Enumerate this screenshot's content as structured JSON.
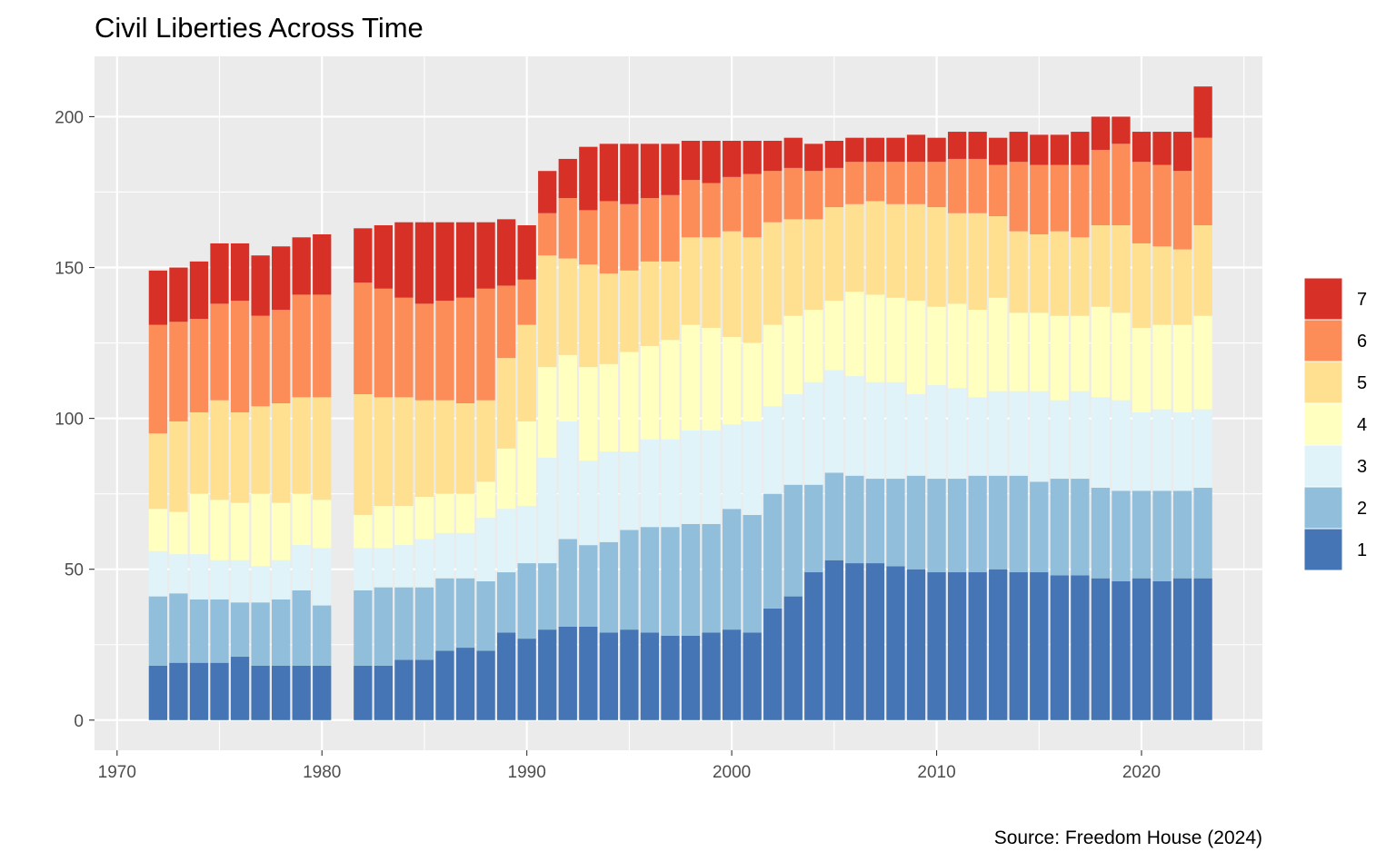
{
  "chart_data": {
    "type": "bar",
    "stacked": true,
    "title": "Civil Liberties Across Time",
    "caption": "Source: Freedom House (2024)",
    "xlabel": "",
    "ylabel": "",
    "xlim": [
      1968.9,
      2025.9
    ],
    "ylim": [
      -10,
      220
    ],
    "x_ticks": [
      1970,
      1980,
      1990,
      2000,
      2010,
      2020
    ],
    "y_ticks": [
      0,
      50,
      100,
      150,
      200
    ],
    "grid": true,
    "legend_position": "right",
    "x": [
      1972,
      1973,
      1974,
      1975,
      1976,
      1977,
      1978,
      1979,
      1980,
      1982,
      1983,
      1984,
      1985,
      1986,
      1987,
      1988,
      1989,
      1990,
      1991,
      1992,
      1993,
      1994,
      1995,
      1996,
      1997,
      1998,
      1999,
      2000,
      2001,
      2002,
      2003,
      2004,
      2005,
      2006,
      2007,
      2008,
      2009,
      2010,
      2011,
      2012,
      2013,
      2014,
      2015,
      2016,
      2017,
      2018,
      2019,
      2020,
      2021,
      2022,
      2023
    ],
    "series": [
      {
        "name": "1",
        "color": "#4575b4",
        "values": [
          18,
          19,
          19,
          19,
          21,
          18,
          18,
          18,
          18,
          18,
          18,
          20,
          20,
          23,
          24,
          23,
          29,
          27,
          30,
          31,
          31,
          29,
          30,
          29,
          28,
          28,
          29,
          30,
          29,
          37,
          41,
          49,
          53,
          52,
          52,
          51,
          50,
          49,
          49,
          49,
          50,
          49,
          49,
          48,
          48,
          47,
          46,
          47,
          46,
          47,
          47
        ]
      },
      {
        "name": "2",
        "color": "#91bfdb",
        "values": [
          23,
          23,
          21,
          21,
          18,
          21,
          22,
          25,
          20,
          25,
          26,
          24,
          24,
          24,
          23,
          23,
          20,
          25,
          22,
          29,
          27,
          30,
          33,
          35,
          36,
          37,
          36,
          40,
          39,
          38,
          37,
          29,
          29,
          29,
          28,
          29,
          31,
          31,
          31,
          32,
          31,
          32,
          30,
          32,
          32,
          30,
          30,
          29,
          30,
          29,
          30
        ]
      },
      {
        "name": "3",
        "color": "#e0f3f8",
        "values": [
          15,
          13,
          15,
          13,
          14,
          12,
          13,
          15,
          19,
          14,
          13,
          14,
          16,
          15,
          15,
          21,
          21,
          19,
          35,
          39,
          28,
          30,
          26,
          29,
          29,
          31,
          31,
          28,
          31,
          29,
          30,
          34,
          34,
          33,
          32,
          32,
          27,
          31,
          30,
          26,
          28,
          28,
          30,
          26,
          29,
          30,
          30,
          26,
          27,
          26,
          26
        ]
      },
      {
        "name": "4",
        "color": "#ffffbf",
        "values": [
          14,
          14,
          20,
          20,
          19,
          24,
          19,
          17,
          16,
          11,
          14,
          13,
          14,
          13,
          13,
          12,
          20,
          28,
          30,
          22,
          31,
          29,
          33,
          31,
          33,
          35,
          34,
          29,
          26,
          27,
          26,
          24,
          23,
          28,
          29,
          28,
          31,
          26,
          28,
          29,
          31,
          26,
          26,
          28,
          25,
          30,
          29,
          28,
          28,
          29,
          31
        ]
      },
      {
        "name": "5",
        "color": "#fee090",
        "values": [
          25,
          30,
          27,
          33,
          30,
          29,
          33,
          32,
          34,
          40,
          36,
          36,
          32,
          31,
          30,
          27,
          30,
          32,
          37,
          32,
          34,
          30,
          27,
          28,
          26,
          29,
          30,
          35,
          35,
          34,
          32,
          30,
          31,
          29,
          31,
          31,
          32,
          33,
          30,
          32,
          27,
          27,
          26,
          28,
          26,
          27,
          29,
          28,
          26,
          25,
          30
        ]
      },
      {
        "name": "6",
        "color": "#fc8d59",
        "values": [
          36,
          33,
          31,
          32,
          37,
          30,
          31,
          34,
          34,
          37,
          36,
          33,
          32,
          33,
          35,
          37,
          24,
          15,
          14,
          20,
          18,
          24,
          22,
          21,
          22,
          19,
          18,
          18,
          21,
          17,
          17,
          16,
          13,
          14,
          13,
          14,
          14,
          15,
          18,
          18,
          17,
          23,
          23,
          22,
          24,
          25,
          27,
          27,
          27,
          26,
          29
        ]
      },
      {
        "name": "7",
        "color": "#d73027",
        "values": [
          18,
          18,
          19,
          20,
          19,
          20,
          21,
          19,
          20,
          18,
          21,
          25,
          27,
          26,
          25,
          22,
          22,
          18,
          14,
          13,
          21,
          19,
          20,
          18,
          17,
          13,
          14,
          12,
          11,
          10,
          10,
          9,
          9,
          8,
          8,
          8,
          9,
          8,
          9,
          9,
          9,
          10,
          10,
          10,
          11,
          11,
          9,
          10,
          11,
          13,
          17
        ]
      }
    ]
  }
}
